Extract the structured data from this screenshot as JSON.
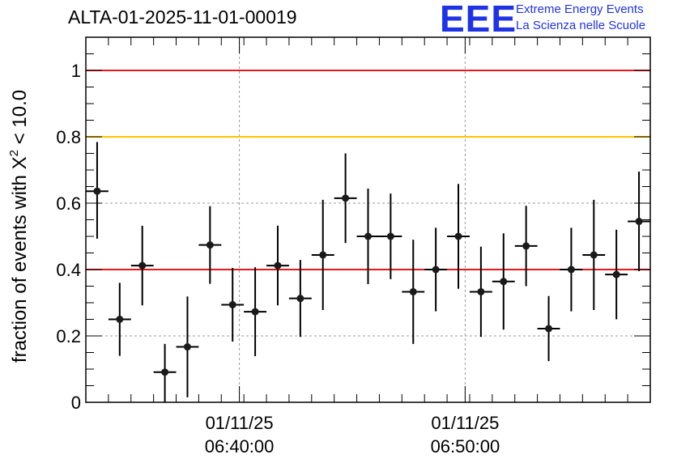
{
  "header": {
    "title": "ALTA-01-2025-11-01-00019"
  },
  "logo": {
    "mark": "EEE",
    "line1": "Extreme Energy Events",
    "line2": "La Scienza nelle Scuole",
    "color": "#1f33e6"
  },
  "chart_data": {
    "type": "scatter",
    "title": "ALTA-01-2025-11-01-00019",
    "ylabel_prefix": "fraction of events with X",
    "ylabel_sup": "2",
    "ylabel_suffix": " < 10.0",
    "ylim": [
      0,
      1.1
    ],
    "yticks": [
      {
        "value": 0,
        "label": "0"
      },
      {
        "value": 0.2,
        "label": "0.2"
      },
      {
        "value": 0.4,
        "label": "0.4"
      },
      {
        "value": 0.6,
        "label": "0.6"
      },
      {
        "value": 0.8,
        "label": "0.8"
      },
      {
        "value": 1.0,
        "label": "1"
      }
    ],
    "xlim_bins": [
      0,
      25
    ],
    "xticks": [
      {
        "bin": 6.8,
        "line1": "01/11/25",
        "line2": "06:40:00"
      },
      {
        "bin": 16.8,
        "line1": "01/11/25",
        "line2": "06:50:00"
      }
    ],
    "grid": true,
    "reference_lines": [
      {
        "value": 1.0,
        "color": "#e8171b"
      },
      {
        "value": 0.8,
        "color": "#ffc400"
      },
      {
        "value": 0.4,
        "color": "#e8171b"
      }
    ],
    "series": [
      {
        "marker_color": "#1a1a1a",
        "points": [
          {
            "bin": 0,
            "y": 0.636,
            "err_low": 0.143,
            "err_high": 0.148
          },
          {
            "bin": 1,
            "y": 0.25,
            "err_low": 0.11,
            "err_high": 0.11
          },
          {
            "bin": 2,
            "y": 0.412,
            "err_low": 0.12,
            "err_high": 0.12
          },
          {
            "bin": 3,
            "y": 0.091,
            "err_low": 0.091,
            "err_high": 0.085
          },
          {
            "bin": 4,
            "y": 0.167,
            "err_low": 0.152,
            "err_high": 0.152
          },
          {
            "bin": 5,
            "y": 0.474,
            "err_low": 0.117,
            "err_high": 0.117
          },
          {
            "bin": 6,
            "y": 0.294,
            "err_low": 0.111,
            "err_high": 0.111
          },
          {
            "bin": 7,
            "y": 0.273,
            "err_low": 0.134,
            "err_high": 0.134
          },
          {
            "bin": 8,
            "y": 0.412,
            "err_low": 0.12,
            "err_high": 0.12
          },
          {
            "bin": 9,
            "y": 0.313,
            "err_low": 0.116,
            "err_high": 0.116
          },
          {
            "bin": 10,
            "y": 0.444,
            "err_low": 0.166,
            "err_high": 0.166
          },
          {
            "bin": 11,
            "y": 0.615,
            "err_low": 0.135,
            "err_high": 0.135
          },
          {
            "bin": 12,
            "y": 0.5,
            "err_low": 0.144,
            "err_high": 0.144
          },
          {
            "bin": 13,
            "y": 0.5,
            "err_low": 0.129,
            "err_high": 0.129
          },
          {
            "bin": 14,
            "y": 0.333,
            "err_low": 0.157,
            "err_high": 0.157
          },
          {
            "bin": 15,
            "y": 0.4,
            "err_low": 0.126,
            "err_high": 0.126
          },
          {
            "bin": 16,
            "y": 0.5,
            "err_low": 0.158,
            "err_high": 0.158
          },
          {
            "bin": 17,
            "y": 0.333,
            "err_low": 0.136,
            "err_high": 0.136
          },
          {
            "bin": 18,
            "y": 0.364,
            "err_low": 0.145,
            "err_high": 0.145
          },
          {
            "bin": 19,
            "y": 0.471,
            "err_low": 0.121,
            "err_high": 0.121
          },
          {
            "bin": 20,
            "y": 0.222,
            "err_low": 0.098,
            "err_high": 0.098
          },
          {
            "bin": 21,
            "y": 0.4,
            "err_low": 0.126,
            "err_high": 0.126
          },
          {
            "bin": 22,
            "y": 0.444,
            "err_low": 0.166,
            "err_high": 0.166
          },
          {
            "bin": 23,
            "y": 0.385,
            "err_low": 0.135,
            "err_high": 0.135
          },
          {
            "bin": 24,
            "y": 0.545,
            "err_low": 0.15,
            "err_high": 0.15
          }
        ]
      }
    ]
  }
}
